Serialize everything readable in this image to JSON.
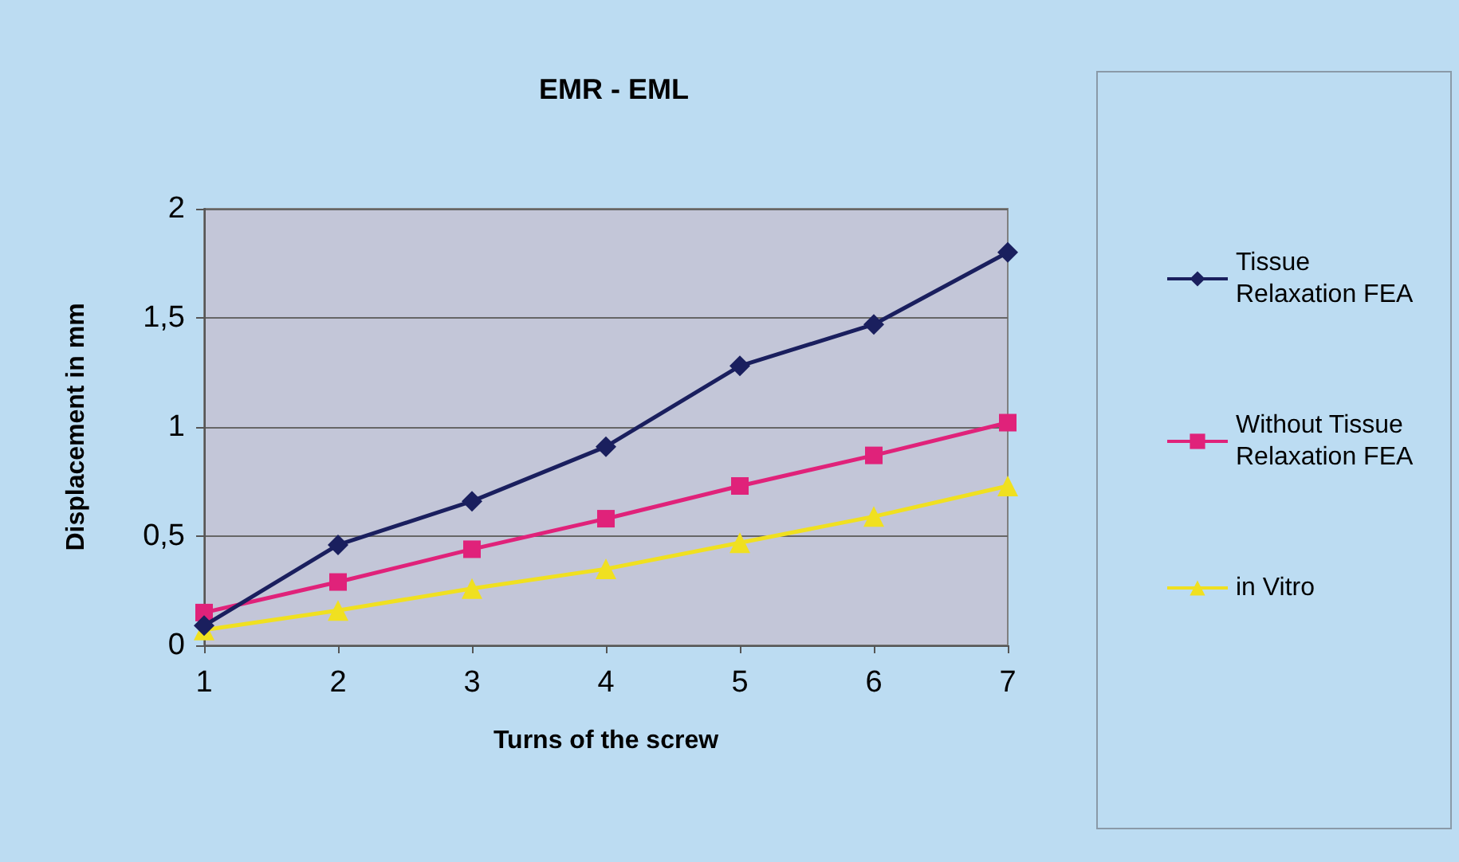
{
  "chart_data": {
    "type": "line",
    "title": "EMR - EML",
    "xlabel": "Turns of the screw",
    "ylabel": "Displacement in mm",
    "categories": [
      "1",
      "2",
      "3",
      "4",
      "5",
      "6",
      "7"
    ],
    "series": [
      {
        "name": "Tissue Relaxation FEA",
        "color": "#1a1f5e",
        "marker": "diamond",
        "values": [
          0.09,
          0.46,
          0.66,
          0.91,
          1.28,
          1.47,
          1.8
        ]
      },
      {
        "name": "Without Tissue Relaxation FEA",
        "color": "#e0227a",
        "marker": "square",
        "values": [
          0.15,
          0.29,
          0.44,
          0.58,
          0.73,
          0.87,
          1.02
        ]
      },
      {
        "name": "in Vitro",
        "color": "#f0e020",
        "marker": "triangle",
        "values": [
          0.07,
          0.16,
          0.26,
          0.35,
          0.47,
          0.59,
          0.73
        ]
      }
    ],
    "ylim": [
      0,
      2
    ],
    "yticks": [
      0,
      {
        "value": 0.5,
        "label": "0,5"
      },
      1,
      {
        "value": 1.5,
        "label": "1,5"
      },
      2
    ],
    "grid": "y",
    "legend": "right",
    "line_style": "solid"
  }
}
